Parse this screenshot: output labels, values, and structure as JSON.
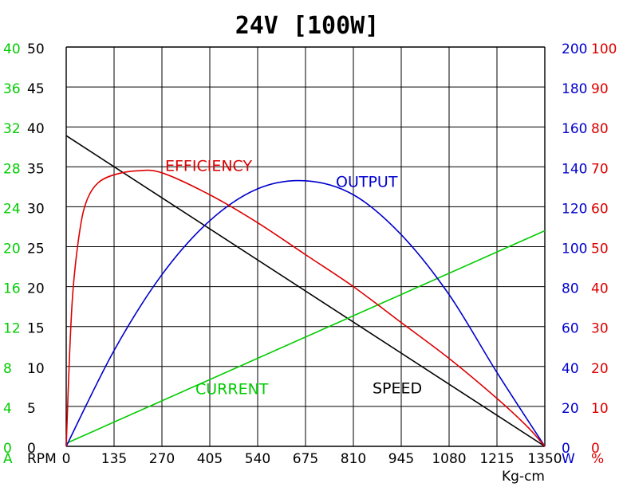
{
  "chart_data": {
    "type": "line",
    "title": "24V [100W]",
    "x": {
      "unit_label": "Kg-cm",
      "ticks": [
        0,
        135,
        270,
        405,
        540,
        675,
        810,
        945,
        1080,
        1215,
        1350
      ],
      "range": [
        0,
        1350
      ]
    },
    "axes": {
      "current": {
        "unit_label": "A",
        "ticks": [
          0,
          4,
          8,
          12,
          16,
          20,
          24,
          28,
          32,
          36,
          40
        ],
        "range": [
          0,
          40
        ],
        "color": "#00cc00"
      },
      "speed": {
        "unit_label": "RPM",
        "ticks": [
          0,
          5,
          10,
          15,
          20,
          25,
          30,
          35,
          40,
          45,
          50
        ],
        "range": [
          0,
          50
        ],
        "color": "#000000"
      },
      "output": {
        "unit_label": "W",
        "ticks": [
          0,
          20,
          40,
          60,
          80,
          100,
          120,
          140,
          160,
          180,
          200
        ],
        "range": [
          0,
          200
        ],
        "color": "#0000cc"
      },
      "efficiency": {
        "unit_label": "%",
        "ticks": [
          0,
          10,
          20,
          30,
          40,
          50,
          60,
          70,
          80,
          90,
          100
        ],
        "range": [
          0,
          100
        ],
        "color": "#dd0000"
      }
    },
    "grid": true,
    "series": [
      {
        "name": "SPEED",
        "axis": "speed",
        "color": "#000000",
        "points": [
          [
            0,
            38.9
          ],
          [
            1350,
            0
          ]
        ]
      },
      {
        "name": "CURRENT",
        "axis": "current",
        "color": "#00cc00",
        "points": [
          [
            0,
            0.3
          ],
          [
            1350,
            21.6
          ]
        ]
      },
      {
        "name": "OUTPUT",
        "axis": "output",
        "color": "#0000cc",
        "points": [
          [
            0,
            0
          ],
          [
            135,
            48
          ],
          [
            270,
            86
          ],
          [
            405,
            113
          ],
          [
            540,
            129
          ],
          [
            675,
            133
          ],
          [
            810,
            126
          ],
          [
            945,
            106
          ],
          [
            1080,
            76
          ],
          [
            1215,
            37
          ],
          [
            1350,
            0
          ]
        ]
      },
      {
        "name": "EFFICIENCY",
        "axis": "efficiency",
        "color": "#dd0000",
        "points": [
          [
            0,
            0
          ],
          [
            10,
            24
          ],
          [
            20,
            40
          ],
          [
            40,
            55
          ],
          [
            60,
            62
          ],
          [
            90,
            66
          ],
          [
            135,
            68
          ],
          [
            200,
            69
          ],
          [
            270,
            68.5
          ],
          [
            405,
            63
          ],
          [
            540,
            56
          ],
          [
            675,
            48
          ],
          [
            810,
            40
          ],
          [
            945,
            31
          ],
          [
            1080,
            22
          ],
          [
            1215,
            12
          ],
          [
            1300,
            5
          ],
          [
            1350,
            0
          ]
        ]
      }
    ]
  }
}
